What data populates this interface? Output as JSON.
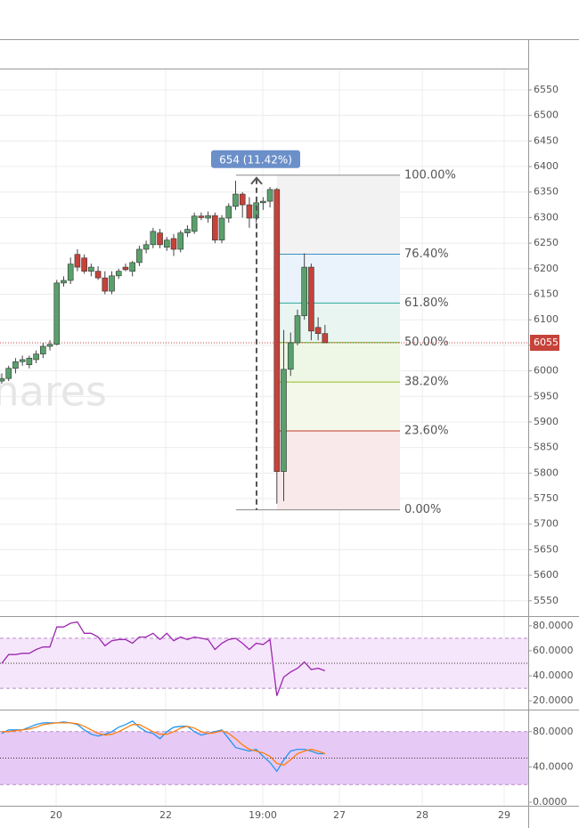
{
  "chart_data": {
    "type": "candlestick",
    "watermark": "hares",
    "time_labels": [
      "20",
      "22",
      "19:00",
      "27",
      "28",
      "29"
    ],
    "ylim": [
      5520,
      6590
    ],
    "yticks": [
      5550,
      5600,
      5650,
      5700,
      5750,
      5800,
      5850,
      5900,
      5950,
      6000,
      6050,
      6100,
      6150,
      6200,
      6250,
      6300,
      6350,
      6400,
      6450,
      6500,
      6550
    ],
    "grid": true,
    "up_color": "#5aa06c",
    "down_color": "#c5433a",
    "open": [
      5980,
      5985,
      6005,
      6018,
      6012,
      6022,
      6033,
      6048,
      6052,
      6172,
      6177,
      6228,
      6221,
      6195,
      6195,
      6182,
      6156,
      6186,
      6203,
      6195,
      6212,
      6238,
      6247,
      6270,
      6242,
      6259,
      6238,
      6270,
      6273,
      6303,
      6299,
      6304,
      6256,
      6299,
      6322,
      6346,
      6325,
      6299,
      6329,
      6332,
      6355,
      5803,
      6003,
      6055,
      6108,
      6203,
      6085,
      6073
    ],
    "high": [
      5995,
      6010,
      6025,
      6030,
      6030,
      6040,
      6055,
      6060,
      6178,
      6185,
      6222,
      6238,
      6228,
      6210,
      6205,
      6195,
      6195,
      6200,
      6210,
      6215,
      6245,
      6255,
      6280,
      6278,
      6262,
      6268,
      6275,
      6285,
      6310,
      6310,
      6312,
      6310,
      6305,
      6328,
      6372,
      6350,
      6340,
      6335,
      6340,
      6360,
      6358,
      6080,
      6075,
      6120,
      6230,
      6210,
      6105,
      6090
    ],
    "low": [
      5975,
      5980,
      5995,
      6010,
      6005,
      6015,
      6025,
      6040,
      6050,
      6165,
      6170,
      6195,
      6190,
      6185,
      6178,
      6150,
      6150,
      6180,
      6195,
      6185,
      6205,
      6230,
      6240,
      6240,
      6235,
      6225,
      6232,
      6262,
      6268,
      6295,
      6290,
      6250,
      6250,
      6290,
      6315,
      6300,
      6280,
      6290,
      6315,
      6320,
      5740,
      5745,
      5990,
      6050,
      6100,
      6060,
      6060,
      6055
    ],
    "close": [
      5985,
      6005,
      6018,
      6022,
      6025,
      6033,
      6048,
      6052,
      6172,
      6177,
      6209,
      6203,
      6195,
      6203,
      6182,
      6156,
      6186,
      6195,
      6198,
      6212,
      6238,
      6247,
      6273,
      6247,
      6256,
      6238,
      6270,
      6277,
      6303,
      6300,
      6304,
      6256,
      6299,
      6322,
      6346,
      6325,
      6299,
      6329,
      6332,
      6355,
      5803,
      6003,
      6055,
      6108,
      6203,
      6078,
      6073,
      6055
    ],
    "current_price": 6055,
    "measure_label": "654 (11.42%)",
    "fib": {
      "high": 6383,
      "low": 5728,
      "levels": [
        100,
        76.4,
        61.8,
        50,
        38.2,
        23.6,
        0
      ],
      "level_labels": [
        "100.00%",
        "76.40%",
        "61.80%",
        "50.00%",
        "38.20%",
        "23.60%",
        "0.00%"
      ],
      "colors": [
        "#888888",
        "#3d8fc6",
        "#2aa898",
        "#6aae22",
        "#96bb22",
        "#c0392b",
        "#888888"
      ],
      "fills": [
        "#f2f2f2",
        "#eaf3fb",
        "#e8f5f1",
        "#eef7e6",
        "#f4f8ea",
        "#f9e9ea"
      ]
    },
    "rsi": {
      "ylim": [
        13,
        87
      ],
      "yticks": [
        {
          "value": 80,
          "label": "80.0000"
        },
        {
          "value": 60,
          "label": "60.0000"
        },
        {
          "value": 40,
          "label": "40.0000"
        },
        {
          "value": 20,
          "label": "20.0000"
        }
      ],
      "band": [
        30,
        70
      ],
      "midline": 50,
      "color": "#9c27b0",
      "values": [
        50,
        57,
        57,
        58,
        58,
        61,
        63,
        63,
        79,
        79,
        82,
        83,
        74,
        74,
        71,
        64,
        68,
        69,
        69,
        66,
        71,
        71,
        74,
        69,
        74,
        68,
        71,
        69,
        71,
        70,
        69,
        61,
        66,
        69,
        70,
        66,
        61,
        66,
        65,
        69,
        24,
        39,
        43,
        46,
        51,
        45,
        46,
        44
      ]
    },
    "stoch": {
      "ylim": [
        -4,
        105
      ],
      "yticks": [
        {
          "value": 80,
          "label": "80.0000"
        },
        {
          "value": 40,
          "label": "40.0000"
        },
        {
          "value": 0,
          "label": "0.0000"
        }
      ],
      "band": [
        20,
        80
      ],
      "midline": 50,
      "series": [
        {
          "color": "#2196f3",
          "values": [
            78,
            82,
            82,
            82,
            85,
            88,
            90,
            90,
            90,
            91,
            90,
            88,
            82,
            77,
            75,
            77,
            80,
            85,
            88,
            92,
            85,
            80,
            78,
            72,
            80,
            85,
            86,
            86,
            80,
            76,
            78,
            80,
            82,
            72,
            62,
            60,
            58,
            60,
            52,
            45,
            35,
            48,
            58,
            60,
            60,
            58,
            55,
            55
          ]
        },
        {
          "color": "#ff7f0e",
          "values": [
            80,
            80,
            81,
            82,
            83,
            85,
            88,
            89,
            90,
            90,
            90,
            89,
            86,
            82,
            78,
            76,
            77,
            80,
            84,
            88,
            88,
            84,
            80,
            77,
            77,
            80,
            84,
            86,
            84,
            80,
            78,
            79,
            81,
            78,
            72,
            65,
            60,
            58,
            56,
            52,
            44,
            42,
            48,
            55,
            58,
            60,
            58,
            55
          ]
        }
      ]
    }
  }
}
